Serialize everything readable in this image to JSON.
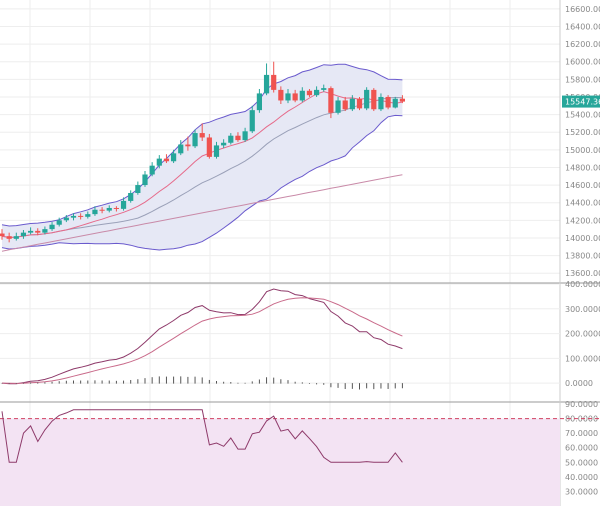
{
  "colors": {
    "up": "#26a69a",
    "down": "#ef5350",
    "band_fill": "#e6e8f5",
    "band_line": "#6a5acd",
    "ma_fast": "#e66a8a",
    "ma_mid": "#9aa0b8",
    "ma_slow": "#c98aa8",
    "macd_line": "#8e3a6a",
    "signal_line": "#c96a8a",
    "hist": "#555555",
    "rsi_line": "#8e3a6a",
    "rsi_fill": "#f3e3f3",
    "rsi_dash": "#d04060",
    "last_price_bg": "#26a69a",
    "grid": "#eeeeee",
    "axis_text": "#888888"
  },
  "chart_data": [
    {
      "type": "candlestick",
      "price_axis": {
        "ylim": [
          13500,
          16700
        ],
        "ticks": [
          "13600.00",
          "13800.00",
          "14000.00",
          "14200.00",
          "14400.00",
          "14600.00",
          "14800.00",
          "15000.00",
          "15200.00",
          "15400.00",
          "15600.00",
          "15800.00",
          "16000.00",
          "16200.00",
          "16400.00",
          "16600.00"
        ]
      },
      "last_price": "15547.36",
      "candles": [
        [
          14050,
          14020,
          14100,
          13980
        ],
        [
          14020,
          13990,
          14060,
          13950
        ],
        [
          13990,
          14020,
          14060,
          13970
        ],
        [
          14020,
          14060,
          14090,
          13990
        ],
        [
          14060,
          14080,
          14120,
          14040
        ],
        [
          14080,
          14060,
          14110,
          14030
        ],
        [
          14060,
          14100,
          14130,
          14040
        ],
        [
          14100,
          14150,
          14180,
          14080
        ],
        [
          14150,
          14200,
          14230,
          14130
        ],
        [
          14200,
          14230,
          14260,
          14180
        ],
        [
          14230,
          14250,
          14280,
          14200
        ],
        [
          14250,
          14240,
          14280,
          14210
        ],
        [
          14240,
          14270,
          14300,
          14220
        ],
        [
          14270,
          14320,
          14360,
          14250
        ],
        [
          14320,
          14310,
          14350,
          14280
        ],
        [
          14310,
          14340,
          14370,
          14290
        ],
        [
          14340,
          14330,
          14360,
          14300
        ],
        [
          14330,
          14420,
          14460,
          14310
        ],
        [
          14420,
          14510,
          14540,
          14400
        ],
        [
          14510,
          14600,
          14640,
          14490
        ],
        [
          14600,
          14720,
          14760,
          14580
        ],
        [
          14720,
          14820,
          14860,
          14700
        ],
        [
          14820,
          14900,
          14940,
          14790
        ],
        [
          14900,
          14870,
          14950,
          14850
        ],
        [
          14870,
          14960,
          15000,
          14850
        ],
        [
          14960,
          15060,
          15110,
          14940
        ],
        [
          15060,
          15040,
          15150,
          14990
        ],
        [
          15040,
          15190,
          15230,
          15020
        ],
        [
          15190,
          15140,
          15300,
          15100
        ],
        [
          15140,
          14920,
          15180,
          14900
        ],
        [
          14920,
          15050,
          15090,
          14900
        ],
        [
          15050,
          15080,
          15120,
          15020
        ],
        [
          15080,
          15160,
          15190,
          15060
        ],
        [
          15160,
          15110,
          15200,
          15090
        ],
        [
          15110,
          15210,
          15250,
          15090
        ],
        [
          15210,
          15450,
          15500,
          15190
        ],
        [
          15450,
          15640,
          15690,
          15420
        ],
        [
          15640,
          15850,
          15980,
          15620
        ],
        [
          15850,
          15680,
          16000,
          15650
        ],
        [
          15680,
          15560,
          15720,
          15520
        ],
        [
          15560,
          15640,
          15690,
          15530
        ],
        [
          15640,
          15560,
          15680,
          15540
        ],
        [
          15560,
          15670,
          15710,
          15540
        ],
        [
          15670,
          15620,
          15690,
          15600
        ],
        [
          15620,
          15680,
          15720,
          15600
        ],
        [
          15680,
          15700,
          15740,
          15660
        ],
        [
          15700,
          15420,
          15720,
          15360
        ],
        [
          15420,
          15560,
          15600,
          15400
        ],
        [
          15560,
          15460,
          15600,
          15440
        ],
        [
          15460,
          15580,
          15620,
          15440
        ],
        [
          15580,
          15470,
          15600,
          15450
        ],
        [
          15470,
          15680,
          15710,
          15450
        ],
        [
          15680,
          15460,
          15700,
          15440
        ],
        [
          15460,
          15600,
          15640,
          15440
        ],
        [
          15600,
          15480,
          15620,
          15460
        ],
        [
          15480,
          15580,
          15600,
          15470
        ],
        [
          15580,
          15547,
          15620,
          15530
        ]
      ]
    },
    {
      "type": "line",
      "axis": {
        "ylim": [
          -60,
          400
        ],
        "ticks": [
          "400.0000",
          "300.0000",
          "200.0000",
          "100.0000",
          "0.0000"
        ]
      }
    },
    {
      "type": "line",
      "axis": {
        "ylim": [
          20,
          90
        ],
        "ticks": [
          "90.0000",
          "80.0000",
          "70.0000",
          "60.0000",
          "50.0000",
          "40.0000",
          "30.0000"
        ],
        "dashed_level": 80
      }
    }
  ]
}
